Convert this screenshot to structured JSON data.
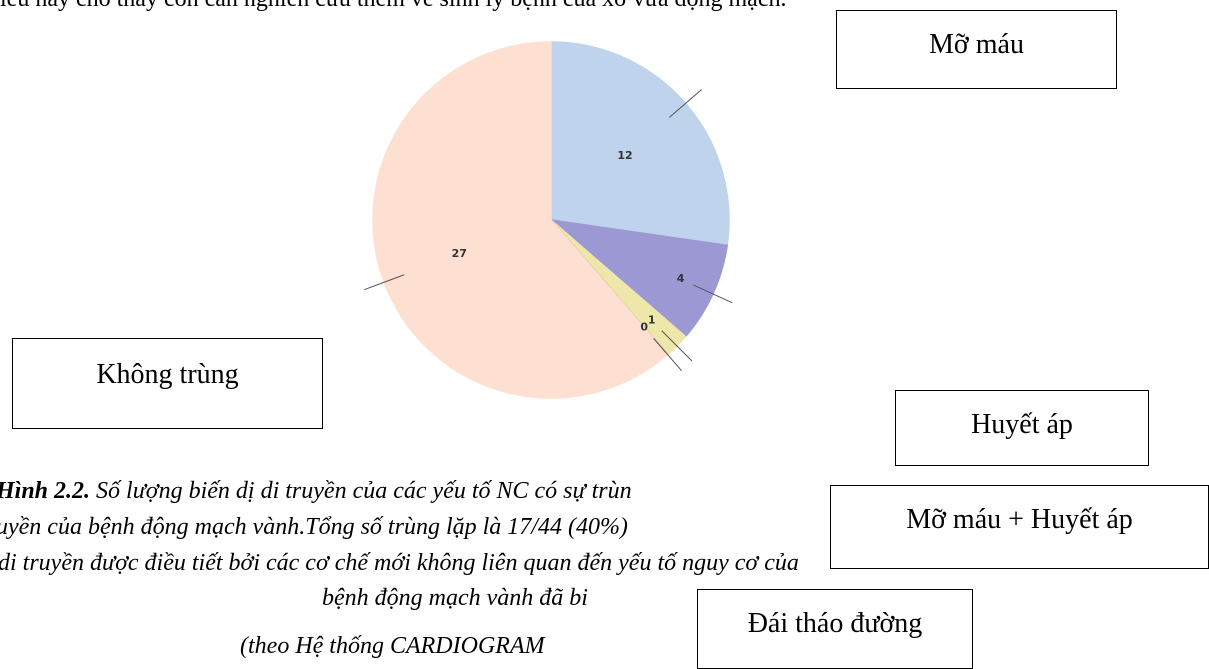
{
  "doc_text": {
    "top_line": "iều này cho thấy còn cần nghiên cứu thêm về sinh lý bệnh của xơ vữa động mạch.",
    "caption": {
      "figure_label": "Hình 2.2.",
      "line1": " Số lượng biến dị di truyền của các yếu tố NC có sự trùn",
      "line2": "uyền của bệnh động mạch vành.Tổng số trùng lặp là 17/44 (40%)",
      "line3": "di truyền được điều tiết bởi các cơ chế mới không liên quan đến yếu tố nguy cơ của",
      "line4": "bệnh động mạch vành đã bi"
    },
    "source": "(theo Hệ thống CARDIOGRAM"
  },
  "chart_data": {
    "type": "pie",
    "categories": [
      "Mỡ máu",
      "Huyết áp",
      "Mỡ máu + Huyết áp",
      "Đái tháo đường",
      "Không trùng"
    ],
    "values": [
      12,
      4,
      1,
      0,
      27
    ],
    "colors": [
      "#bfd3ec",
      "#9c98d3",
      "#efe7a9",
      "#222222",
      "#fde0d1"
    ]
  }
}
